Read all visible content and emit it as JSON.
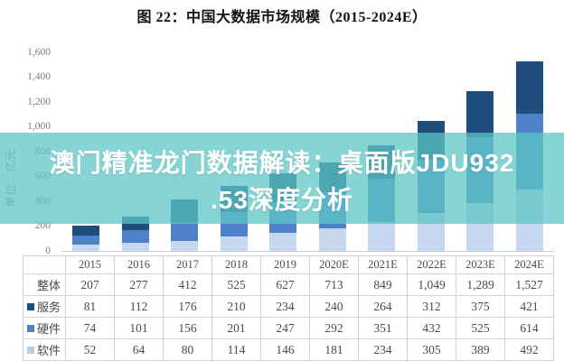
{
  "title": "图 22：中国大数据市场规模（2015-2024E）",
  "y_axis": {
    "unit_label": "单位：亿元",
    "ticks": [
      "1,600",
      "1,400",
      "1,200",
      "1,000",
      "800",
      "600",
      "400",
      "200",
      "0"
    ]
  },
  "watermark": {
    "line1": "澳门精准龙门数据解读：桌面版JDU932",
    "line2": ".53深度分析",
    "band_color": "rgba(93,198,196,0.75)",
    "text_color": "#ffffff"
  },
  "chart_data": {
    "type": "bar",
    "stacked": true,
    "title": "图 22：中国大数据市场规模（2015-2024E）",
    "ylabel": "单位：亿元",
    "ylim": [
      0,
      1600
    ],
    "ytick_step": 200,
    "grid": false,
    "legend_position": "table-row-labels",
    "categories": [
      "2015",
      "2016",
      "2017",
      "2018",
      "2019",
      "2020E",
      "2021E",
      "2022E",
      "2023E",
      "2024E"
    ],
    "series": [
      {
        "name": "软件",
        "color": "#c5d8f0",
        "values": [
          52,
          64,
          80,
          114,
          146,
          181,
          234,
          305,
          389,
          492
        ]
      },
      {
        "name": "硬件",
        "color": "#4e82c8",
        "values": [
          74,
          101,
          156,
          201,
          247,
          292,
          351,
          432,
          525,
          614
        ]
      },
      {
        "name": "服务",
        "color": "#1f4e7c",
        "values": [
          81,
          112,
          176,
          210,
          234,
          240,
          264,
          312,
          375,
          421
        ]
      }
    ],
    "totals": [
      207,
      277,
      412,
      525,
      627,
      713,
      849,
      1049,
      1289,
      1527
    ]
  },
  "table": {
    "corner_label": "",
    "years": [
      "2015",
      "2016",
      "2017",
      "2018",
      "2019",
      "2020E",
      "2021E",
      "2022E",
      "2023E",
      "2024E"
    ],
    "rows": [
      {
        "label": "整体",
        "marker_color": "",
        "values": [
          "207",
          "277",
          "412",
          "525",
          "627",
          "713",
          "849",
          "1,049",
          "1,289",
          "1,527"
        ]
      },
      {
        "label": "服务",
        "marker_color": "#1f4e7c",
        "values": [
          "81",
          "112",
          "176",
          "210",
          "234",
          "240",
          "264",
          "312",
          "375",
          "421"
        ]
      },
      {
        "label": "硬件",
        "marker_color": "#4e82c8",
        "values": [
          "74",
          "101",
          "156",
          "201",
          "247",
          "292",
          "351",
          "432",
          "525",
          "614"
        ]
      },
      {
        "label": "软件",
        "marker_color": "#b9cde8",
        "values": [
          "52",
          "64",
          "80",
          "114",
          "146",
          "181",
          "234",
          "305",
          "389",
          "492"
        ]
      }
    ]
  }
}
